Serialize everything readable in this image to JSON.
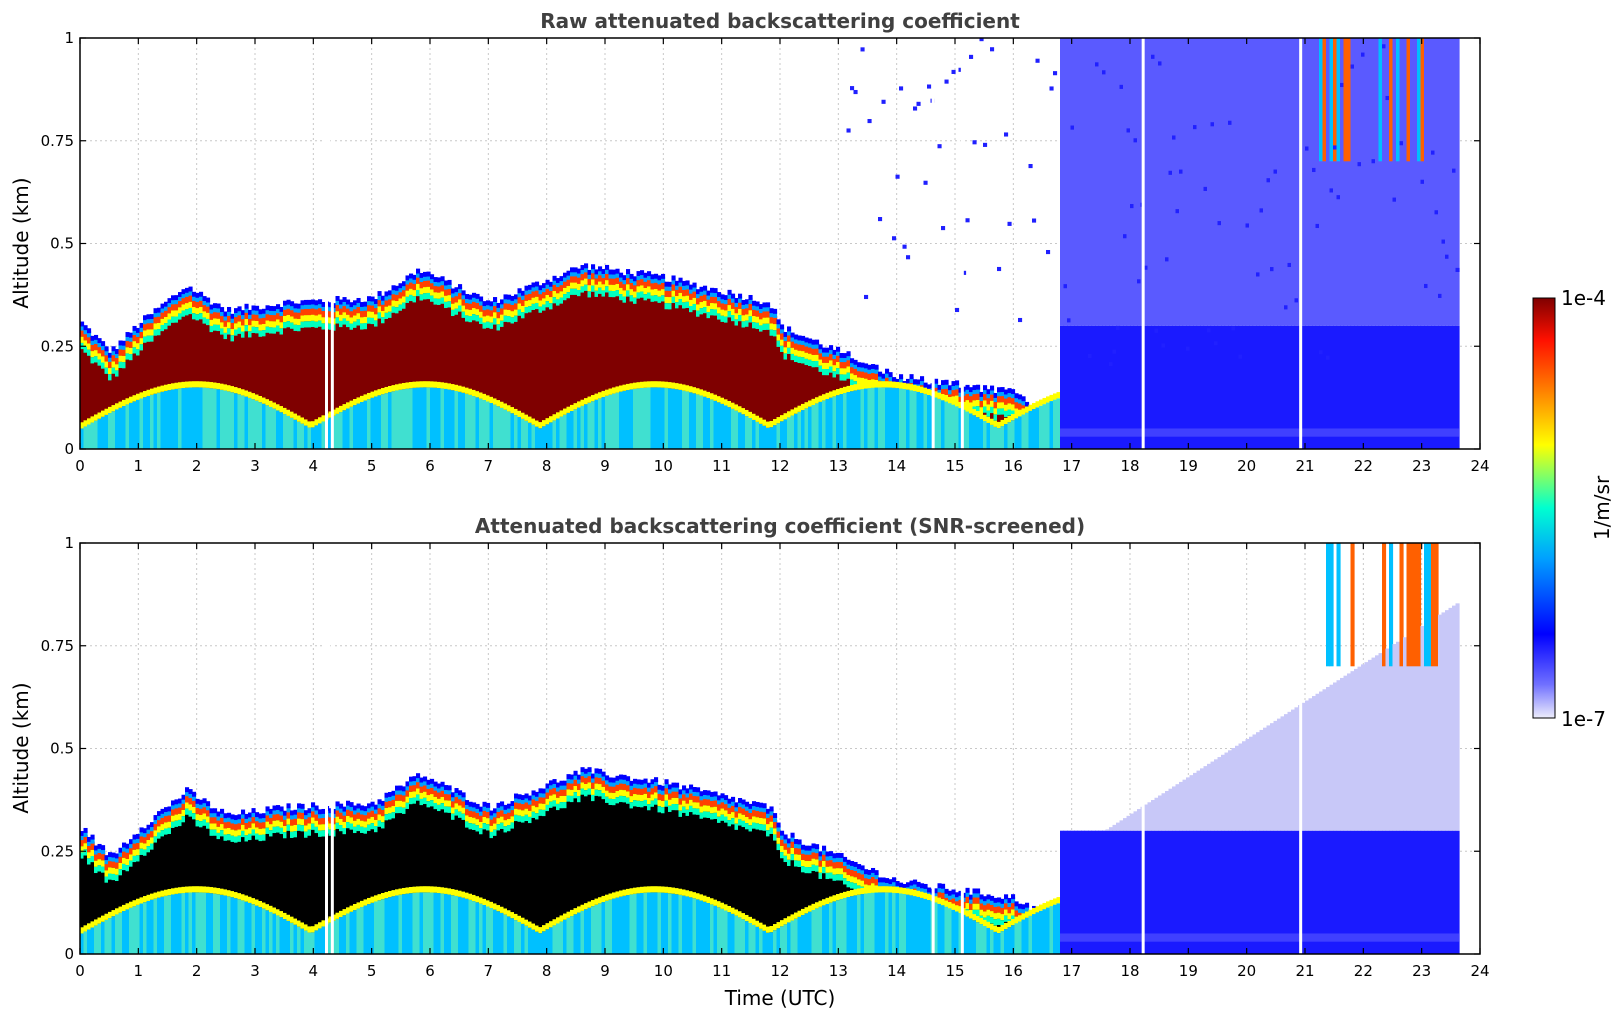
{
  "chart_data": [
    {
      "type": "heatmap",
      "title": "Raw attenuated backscattering coefficient",
      "xlabel": "",
      "ylabel": "Altitude (km)",
      "xlim": [
        0,
        24
      ],
      "ylim": [
        0,
        1
      ],
      "xticks": [
        0,
        1,
        2,
        3,
        4,
        5,
        6,
        7,
        8,
        9,
        10,
        11,
        12,
        13,
        14,
        15,
        16,
        17,
        18,
        19,
        20,
        21,
        22,
        23,
        24
      ],
      "yticks": [
        0,
        0.25,
        0.5,
        0.75,
        1
      ],
      "ytick_labels": [
        "0",
        "0.25",
        "0.5",
        "0.75",
        "1"
      ],
      "grid": true,
      "data_end_hour": 23.6,
      "aerosol_layer_top_km": [
        [
          0,
          0.29
        ],
        [
          0.5,
          0.22
        ],
        [
          1,
          0.29
        ],
        [
          1.8,
          0.38
        ],
        [
          2.5,
          0.32
        ],
        [
          3.5,
          0.34
        ],
        [
          5,
          0.35
        ],
        [
          5.8,
          0.42
        ],
        [
          7,
          0.34
        ],
        [
          8.6,
          0.43
        ],
        [
          10,
          0.4
        ],
        [
          11.8,
          0.34
        ],
        [
          12,
          0.28
        ],
        [
          13,
          0.22
        ],
        [
          14,
          0.16
        ],
        [
          15,
          0.14
        ],
        [
          16,
          0.12
        ],
        [
          16.8,
          0.05
        ]
      ],
      "screened": false
    },
    {
      "type": "heatmap",
      "title": "Attenuated backscattering coefficient (SNR-screened)",
      "xlabel": "Time (UTC)",
      "ylabel": "Altitude (km)",
      "xlim": [
        0,
        24
      ],
      "ylim": [
        0,
        1
      ],
      "xticks": [
        0,
        1,
        2,
        3,
        4,
        5,
        6,
        7,
        8,
        9,
        10,
        11,
        12,
        13,
        14,
        15,
        16,
        17,
        18,
        19,
        20,
        21,
        22,
        23,
        24
      ],
      "yticks": [
        0,
        0.25,
        0.5,
        0.75,
        1
      ],
      "ytick_labels": [
        "0",
        "0.25",
        "0.5",
        "0.75",
        "1"
      ],
      "grid": true,
      "data_end_hour": 23.6,
      "aerosol_layer_top_km": [
        [
          0,
          0.29
        ],
        [
          0.5,
          0.22
        ],
        [
          1,
          0.29
        ],
        [
          1.8,
          0.38
        ],
        [
          2.5,
          0.32
        ],
        [
          3.5,
          0.34
        ],
        [
          5,
          0.35
        ],
        [
          5.8,
          0.42
        ],
        [
          7,
          0.34
        ],
        [
          8.6,
          0.43
        ],
        [
          10,
          0.4
        ],
        [
          11.8,
          0.34
        ],
        [
          12,
          0.28
        ],
        [
          13,
          0.22
        ],
        [
          14,
          0.16
        ],
        [
          15,
          0.14
        ],
        [
          16,
          0.12
        ],
        [
          16.8,
          0.05
        ]
      ],
      "screened": true
    }
  ],
  "colorbar": {
    "label": "1/m/sr",
    "max_label": "1e-4",
    "min_label": "1e-7",
    "colormap": "jet",
    "stops": [
      "#ededfb",
      "#0000ff",
      "#00bfff",
      "#00ffc0",
      "#ffff00",
      "#ff8000",
      "#ff0000",
      "#7f0000"
    ]
  },
  "colors": {
    "saturated": "#7f0000",
    "screened_saturated": "#000000",
    "background": "#ffffff"
  }
}
